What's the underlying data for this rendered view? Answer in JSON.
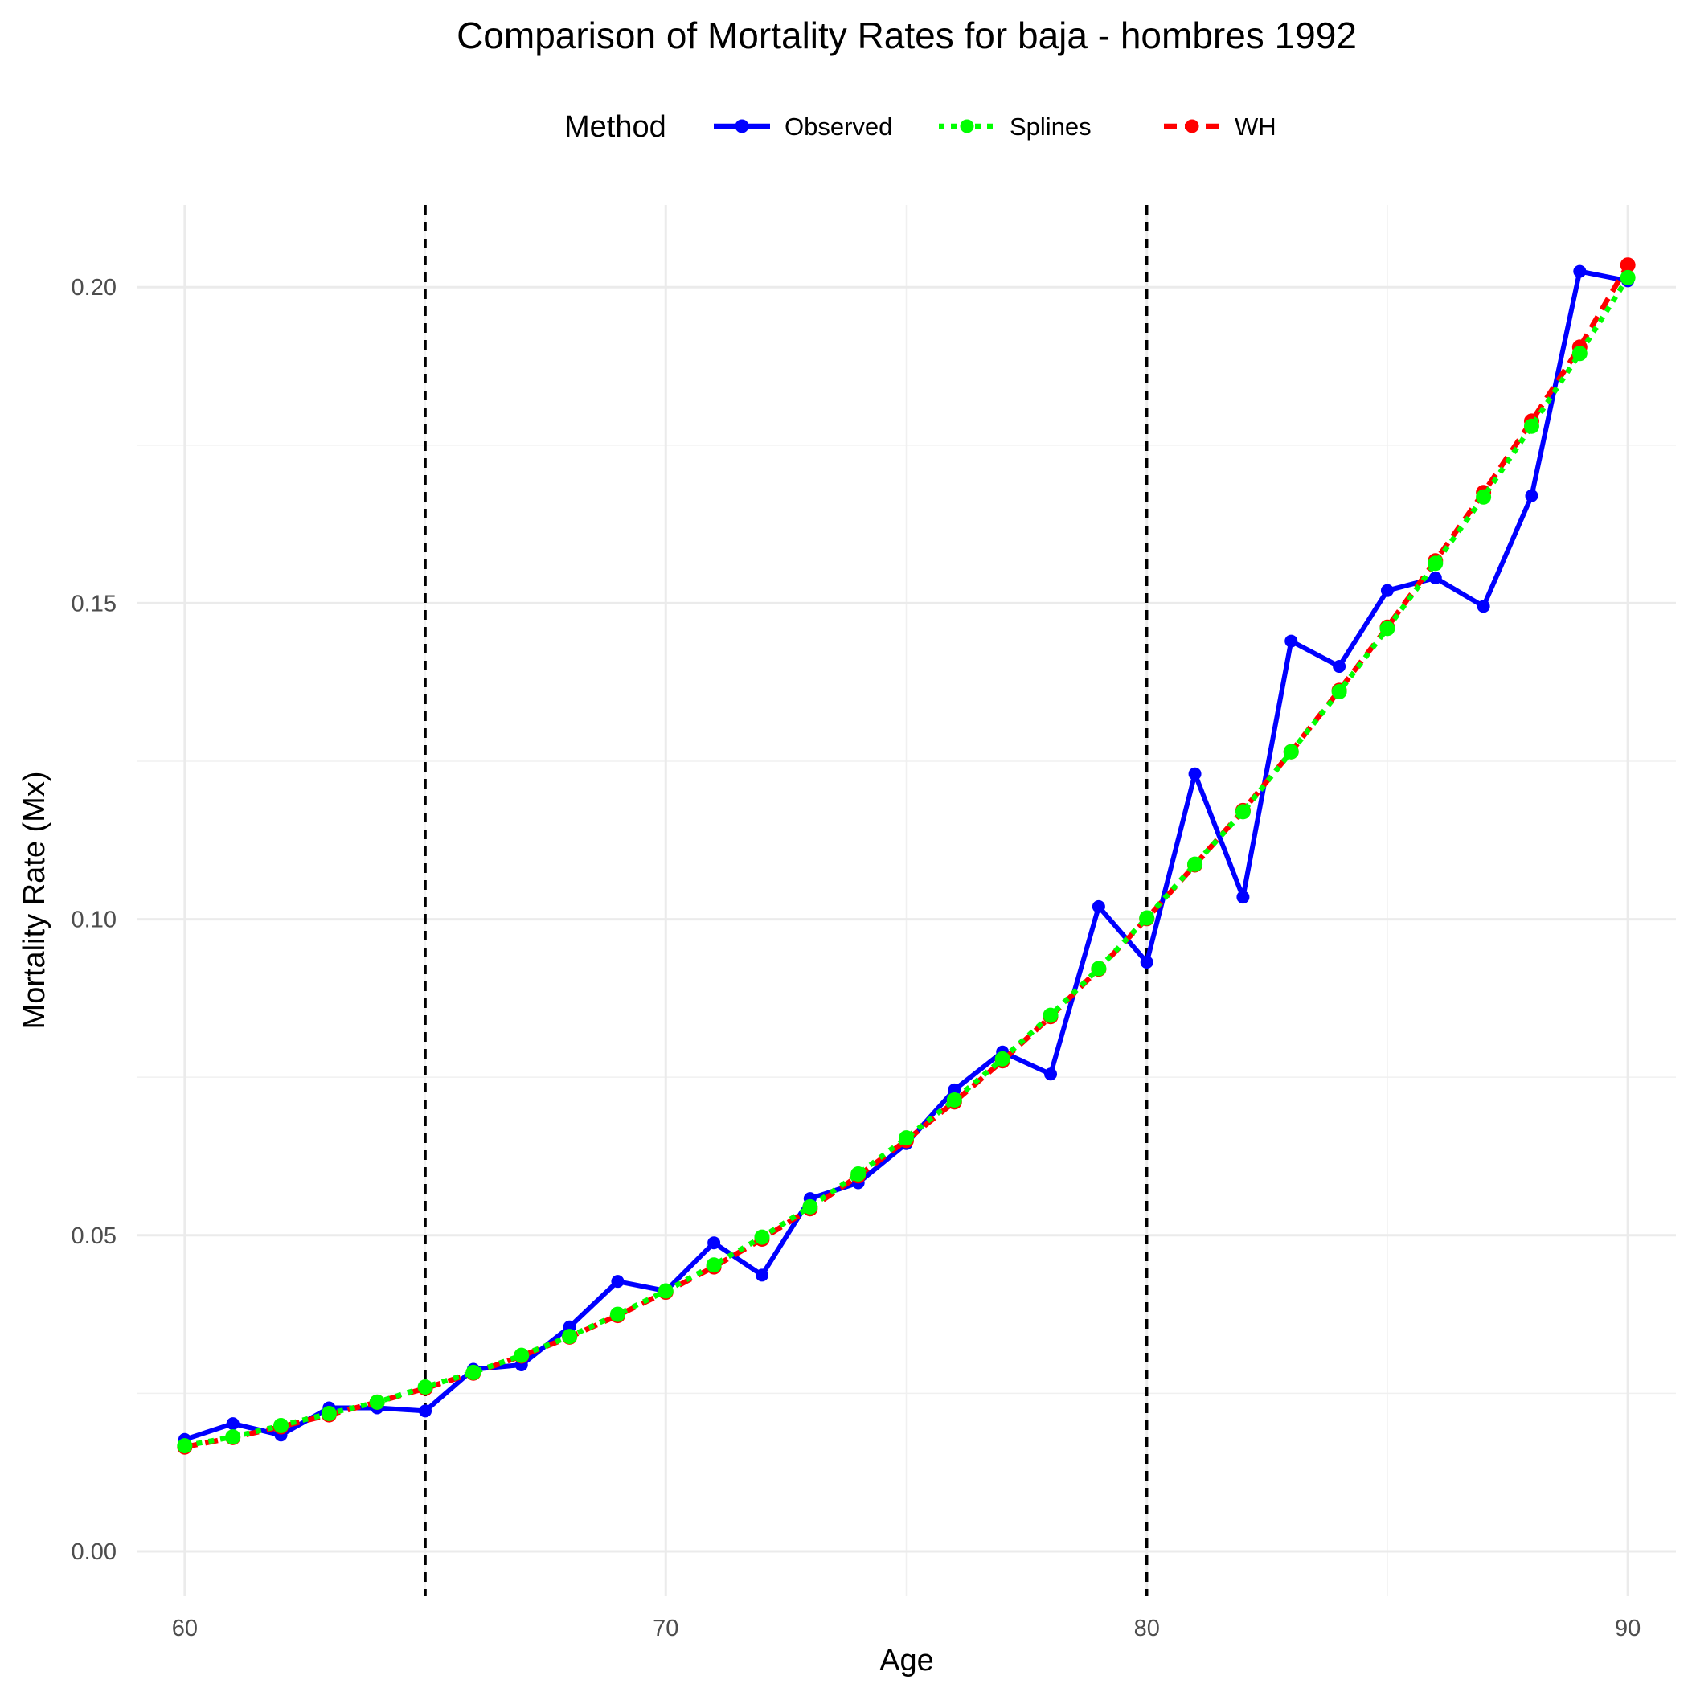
{
  "chart_data": {
    "type": "line",
    "title": "Comparison of Mortality Rates for baja - hombres 1992",
    "xlabel": "Age",
    "ylabel": "Mortality Rate (Mx)",
    "xlim": [
      59,
      91
    ],
    "ylim": [
      -0.007,
      0.213
    ],
    "x_ticks": [
      60,
      70,
      80,
      90
    ],
    "x_tick_labels": [
      "60",
      "70",
      "80",
      "90"
    ],
    "y_ticks": [
      0.0,
      0.05,
      0.1,
      0.15,
      0.2
    ],
    "y_tick_labels": [
      "0.00",
      "0.05",
      "0.10",
      "0.15",
      "0.20"
    ],
    "grid": true,
    "legend": {
      "title": "Method",
      "position": "top"
    },
    "vertical_lines": [
      65,
      80
    ],
    "x": [
      60,
      61,
      62,
      63,
      64,
      65,
      66,
      67,
      68,
      69,
      70,
      71,
      72,
      73,
      74,
      75,
      76,
      77,
      78,
      79,
      80,
      81,
      82,
      83,
      84,
      85,
      86,
      87,
      88,
      89,
      90
    ],
    "series": [
      {
        "name": "Observed",
        "color": "#0000ff",
        "dash": "solid",
        "values": [
          0.0177,
          0.0202,
          0.0184,
          0.0227,
          0.0227,
          0.0222,
          0.0288,
          0.0295,
          0.0355,
          0.0427,
          0.0412,
          0.0488,
          0.0437,
          0.0558,
          0.0583,
          0.0645,
          0.073,
          0.079,
          0.0755,
          0.102,
          0.0932,
          0.123,
          0.1035,
          0.144,
          0.14,
          0.152,
          0.154,
          0.1495,
          0.167,
          0.2025,
          0.201
        ]
      },
      {
        "name": "Splines",
        "color": "#00ff00",
        "dash": "dotted",
        "values": [
          0.0167,
          0.0181,
          0.0199,
          0.0218,
          0.0236,
          0.026,
          0.0283,
          0.031,
          0.034,
          0.0375,
          0.0412,
          0.0453,
          0.0497,
          0.0545,
          0.0597,
          0.0654,
          0.0714,
          0.0779,
          0.0848,
          0.0922,
          0.1002,
          0.1087,
          0.117,
          0.1265,
          0.136,
          0.146,
          0.1563,
          0.1668,
          0.178,
          0.1895,
          0.2015
        ]
      },
      {
        "name": "WH",
        "color": "#ff0000",
        "dash": "dashed",
        "values": [
          0.0165,
          0.018,
          0.0197,
          0.0216,
          0.0236,
          0.0258,
          0.0282,
          0.0309,
          0.0339,
          0.0373,
          0.041,
          0.045,
          0.0494,
          0.0542,
          0.0594,
          0.065,
          0.0711,
          0.0776,
          0.0846,
          0.0921,
          0.1001,
          0.1086,
          0.1172,
          0.1265,
          0.1362,
          0.1462,
          0.1567,
          0.1675,
          0.1788,
          0.1905,
          0.2035
        ]
      }
    ]
  }
}
